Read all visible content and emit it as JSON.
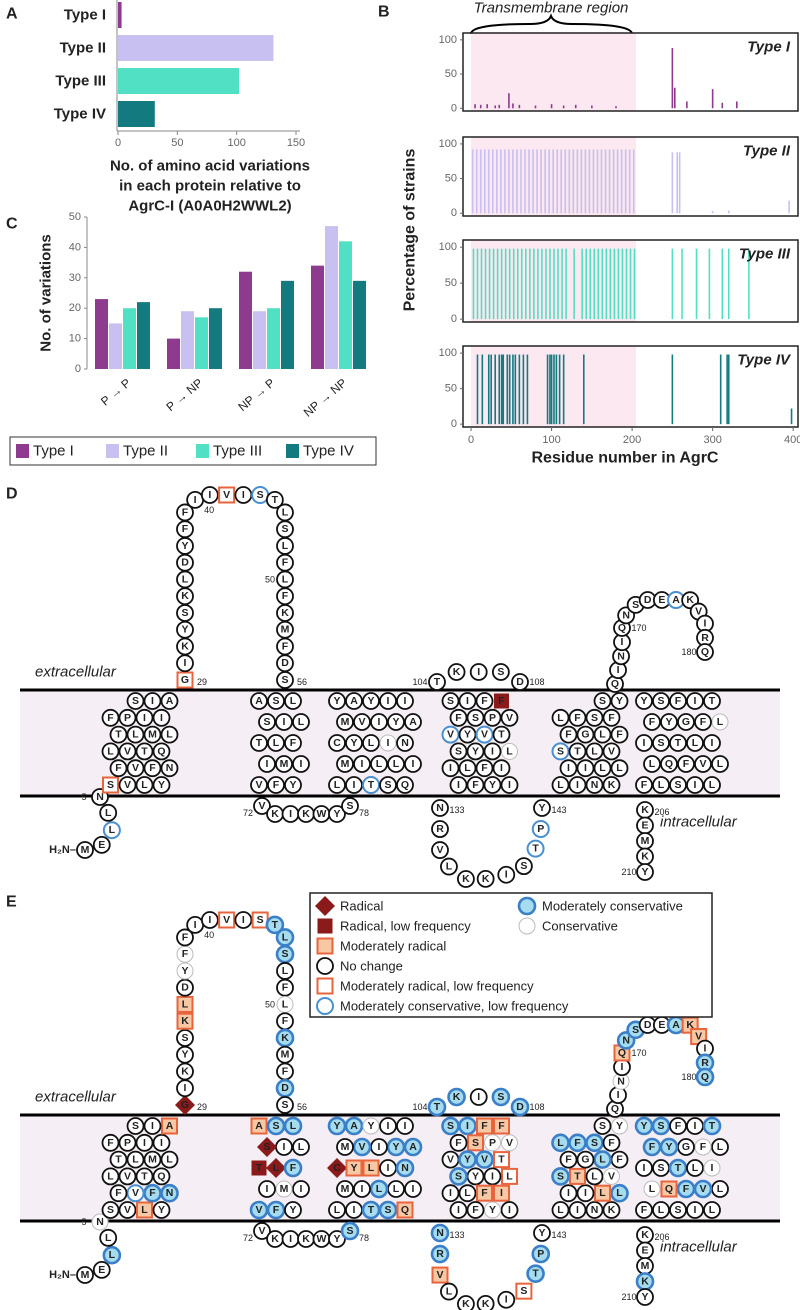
{
  "panel_labels": [
    "A",
    "B",
    "C",
    "D",
    "E"
  ],
  "chart_data": [
    {
      "type": "bar",
      "orientation": "horizontal",
      "categories": [
        "Type I",
        "Type II",
        "Type III",
        "Type IV"
      ],
      "values": [
        3,
        131,
        102,
        31
      ],
      "colors": [
        "#8e3a8e",
        "#c8c0f0",
        "#52e0c4",
        "#137a80"
      ],
      "xlim": [
        0,
        150
      ],
      "xticks": [
        0,
        50,
        100,
        150
      ],
      "xlabel": [
        "No. of amino acid variations",
        "in each protein relative to",
        "AgrC-I (A0A0H2WWL2)"
      ]
    },
    {
      "type": "bar",
      "title": "Type I",
      "annotation": "Transmembrane region",
      "ylabel": "Percentage of strains",
      "shaded_range": [
        0,
        205
      ],
      "color": "#8e3a8e",
      "xlim": [
        -10,
        406
      ],
      "ylim": [
        -4,
        110
      ],
      "yticks": [
        0,
        50,
        100
      ],
      "x": [
        5,
        12,
        20,
        30,
        35,
        47,
        52,
        60,
        80,
        100,
        115,
        130,
        150,
        180,
        250,
        253,
        268,
        300,
        312,
        330
      ],
      "values": [
        6,
        5,
        6,
        4,
        5,
        22,
        7,
        5,
        4,
        6,
        4,
        5,
        4,
        3,
        88,
        30,
        10,
        28,
        8,
        10
      ]
    },
    {
      "type": "bar",
      "title": "Type II",
      "shaded_range": [
        0,
        205
      ],
      "color": "#c8c0f0",
      "xlim": [
        -10,
        406
      ],
      "ylim": [
        -4,
        110
      ],
      "yticks": [
        0,
        50,
        100
      ],
      "x": [
        2,
        7,
        12,
        17,
        22,
        27,
        32,
        37,
        42,
        47,
        52,
        57,
        62,
        67,
        72,
        77,
        82,
        87,
        92,
        97,
        102,
        107,
        112,
        117,
        122,
        127,
        132,
        137,
        142,
        147,
        152,
        157,
        162,
        167,
        172,
        177,
        182,
        187,
        192,
        197,
        202,
        250,
        256,
        259,
        300,
        320,
        395
      ],
      "values": [
        92,
        92,
        92,
        92,
        92,
        92,
        92,
        92,
        92,
        92,
        92,
        92,
        92,
        92,
        92,
        92,
        92,
        92,
        92,
        92,
        92,
        92,
        92,
        92,
        92,
        92,
        92,
        92,
        92,
        92,
        92,
        92,
        92,
        92,
        92,
        92,
        92,
        92,
        92,
        92,
        92,
        88,
        88,
        88,
        3,
        4,
        18
      ]
    },
    {
      "type": "bar",
      "title": "Type III",
      "shaded_range": [
        0,
        205
      ],
      "color": "#52e0c4",
      "xlim": [
        -10,
        406
      ],
      "ylim": [
        -4,
        110
      ],
      "yticks": [
        0,
        50,
        100
      ],
      "x": [
        3,
        8,
        13,
        18,
        23,
        28,
        33,
        38,
        43,
        48,
        53,
        58,
        63,
        68,
        73,
        78,
        83,
        88,
        93,
        98,
        103,
        108,
        113,
        118,
        128,
        138,
        143,
        148,
        153,
        158,
        163,
        168,
        173,
        178,
        183,
        188,
        193,
        198,
        203,
        250,
        262,
        280,
        296,
        312,
        320,
        345
      ],
      "values": [
        98,
        98,
        98,
        98,
        98,
        98,
        98,
        98,
        98,
        98,
        98,
        98,
        98,
        98,
        98,
        98,
        98,
        98,
        98,
        98,
        98,
        98,
        98,
        98,
        98,
        98,
        98,
        98,
        98,
        98,
        98,
        98,
        98,
        98,
        98,
        98,
        98,
        98,
        98,
        98,
        98,
        98,
        98,
        98,
        98,
        98
      ]
    },
    {
      "type": "bar",
      "title": "Type IV",
      "shaded_range": [
        0,
        205
      ],
      "color": "#137a80",
      "xlim": [
        -10,
        406
      ],
      "ylim": [
        -4,
        110
      ],
      "yticks": [
        0,
        50,
        100
      ],
      "xticks": [
        0,
        100,
        200,
        300,
        400
      ],
      "xlabel": "Residue number in AgrC",
      "x": [
        8,
        14,
        22,
        25,
        30,
        35,
        38,
        40,
        45,
        48,
        52,
        55,
        60,
        65,
        70,
        95,
        98,
        100,
        103,
        106,
        110,
        115,
        140,
        250,
        310,
        318,
        320,
        398
      ],
      "values": [
        98,
        98,
        98,
        98,
        98,
        98,
        98,
        98,
        98,
        98,
        98,
        98,
        98,
        98,
        98,
        98,
        98,
        98,
        98,
        98,
        98,
        98,
        98,
        98,
        98,
        98,
        98,
        22
      ]
    },
    {
      "type": "bar",
      "categories": [
        "P → P",
        "P → NP",
        "NP → P",
        "NP → NP"
      ],
      "ylabel": "No. of variations",
      "ylim": [
        0,
        50
      ],
      "yticks": [
        0,
        10,
        20,
        30,
        40,
        50
      ],
      "series": [
        {
          "name": "Type I",
          "color": "#8e3a8e",
          "values": [
            23,
            10,
            32,
            34
          ]
        },
        {
          "name": "Type II",
          "color": "#c8c0f0",
          "values": [
            15,
            19,
            19,
            47
          ]
        },
        {
          "name": "Type III",
          "color": "#52e0c4",
          "values": [
            20,
            17,
            20,
            42
          ]
        },
        {
          "name": "Type IV",
          "color": "#137a80",
          "values": [
            22,
            20,
            29,
            29
          ]
        }
      ]
    }
  ],
  "sequence": [
    "M",
    "E",
    "L",
    "L",
    "N",
    "S",
    "V",
    "L",
    "Y",
    "N",
    "F",
    "V",
    "F",
    "L",
    "V",
    "T",
    "Q",
    "L",
    "M",
    "L",
    "T",
    "F",
    "P",
    "I",
    "I",
    "A",
    "I",
    "S",
    "G",
    "I",
    "K",
    "Y",
    "S",
    "K",
    "L",
    "D",
    "Y",
    "F",
    "F",
    "I",
    "I",
    "V",
    "I",
    "S",
    "T",
    "L",
    "S",
    "L",
    "F",
    "L",
    "F",
    "K",
    "M",
    "F",
    "D",
    "S",
    "A",
    "S",
    "L",
    "L",
    "I",
    "S",
    "T",
    "L",
    "F",
    "I",
    "M",
    "I",
    "V",
    "F",
    "Y",
    "V",
    "K",
    "I",
    "K",
    "W",
    "Y",
    "S",
    "L",
    "I",
    "T",
    "S",
    "Q",
    "I",
    "L",
    "L",
    "I",
    "M",
    "C",
    "Y",
    "L",
    "I",
    "N",
    "A",
    "Y",
    "I",
    "V",
    "M",
    "Y",
    "A",
    "Y",
    "I",
    "I",
    "T",
    "K",
    "I",
    "S",
    "D",
    "S",
    "I",
    "F",
    "F",
    "V",
    "P",
    "S",
    "F",
    "V",
    "Y",
    "V",
    "T",
    "L",
    "I",
    "Y",
    "S",
    "I",
    "L",
    "F",
    "I",
    "I",
    "Y",
    "F",
    "I",
    "N",
    "R",
    "V",
    "L",
    "K",
    "K",
    "I",
    "S",
    "T",
    "P",
    "Y",
    "L",
    "I",
    "N",
    "K",
    "L",
    "L",
    "I",
    "I",
    "S",
    "T",
    "L",
    "V",
    "F",
    "L",
    "G",
    "F",
    "L",
    "F",
    "S",
    "F",
    "Y",
    "S",
    "Q",
    "I",
    "N",
    "I",
    "Q",
    "N",
    "S",
    "D",
    "E",
    "A",
    "K",
    "V",
    "I",
    "R",
    "Q",
    "Y",
    "S",
    "F",
    "I",
    "T",
    "L",
    "F",
    "G",
    "Y",
    "F",
    "I",
    "S",
    "T",
    "L",
    "I",
    "L",
    "V",
    "F",
    "Q",
    "L",
    "F",
    "L",
    "S",
    "I",
    "L",
    "K",
    "E",
    "M",
    "K",
    "Y"
  ],
  "panel_d": {
    "extracellular": "extracellular",
    "intracellular": "intracellular",
    "n_terminus": "H₂N–",
    "residue_labels": [
      5,
      29,
      40,
      50,
      56,
      72,
      78,
      104,
      108,
      133,
      143,
      170,
      180,
      206,
      210
    ],
    "default_class": 3,
    "highlights": [
      [
        3,
        5
      ],
      [
        6,
        4
      ],
      [
        29,
        4
      ],
      [
        42,
        4
      ],
      [
        44,
        5
      ],
      [
        81,
        5
      ],
      [
        112,
        1
      ],
      [
        117,
        5
      ],
      [
        119,
        5
      ],
      [
        141,
        5
      ],
      [
        142,
        5
      ],
      [
        152,
        5
      ],
      [
        175,
        5
      ],
      [
        121,
        7
      ],
      [
        186,
        7
      ],
      [
        92,
        7
      ]
    ]
  },
  "panel_e": {
    "extracellular": "extracellular",
    "intracellular": "intracellular",
    "n_terminus": "H₂N–",
    "residue_labels": [
      5,
      29,
      40,
      50,
      56,
      72,
      78,
      104,
      108,
      133,
      143,
      170,
      180,
      206,
      210
    ],
    "default_class": 3,
    "legend": [
      "Radical",
      "Radical, low frequency",
      "Moderately radical",
      "No change",
      "Moderately radical, low frequency",
      "Moderately conservative, low frequency",
      "Moderately conservative",
      "Conservative"
    ],
    "highlights": [
      [
        3,
        6
      ],
      [
        8,
        2
      ],
      [
        10,
        6
      ],
      [
        11,
        6
      ],
      [
        12,
        5
      ],
      [
        26,
        2
      ],
      [
        29,
        0
      ],
      [
        34,
        2
      ],
      [
        35,
        2
      ],
      [
        42,
        4
      ],
      [
        44,
        4
      ],
      [
        45,
        6
      ],
      [
        46,
        6
      ],
      [
        47,
        6
      ],
      [
        52,
        6
      ],
      [
        55,
        6
      ],
      [
        57,
        2
      ],
      [
        58,
        6
      ],
      [
        59,
        6
      ],
      [
        62,
        0
      ],
      [
        63,
        1
      ],
      [
        64,
        0
      ],
      [
        65,
        6
      ],
      [
        69,
        6
      ],
      [
        70,
        6
      ],
      [
        78,
        6
      ],
      [
        81,
        6
      ],
      [
        82,
        6
      ],
      [
        83,
        2
      ],
      [
        86,
        6
      ],
      [
        89,
        0
      ],
      [
        90,
        2
      ],
      [
        91,
        2
      ],
      [
        93,
        6
      ],
      [
        94,
        6
      ],
      [
        95,
        6
      ],
      [
        97,
        6
      ],
      [
        99,
        6
      ],
      [
        100,
        6
      ],
      [
        104,
        6
      ],
      [
        105,
        6
      ],
      [
        107,
        6
      ],
      [
        108,
        6
      ],
      [
        109,
        6
      ],
      [
        110,
        6
      ],
      [
        111,
        2
      ],
      [
        112,
        2
      ],
      [
        115,
        2
      ],
      [
        118,
        6
      ],
      [
        119,
        6
      ],
      [
        120,
        4
      ],
      [
        121,
        4
      ],
      [
        124,
        6
      ],
      [
        127,
        2
      ],
      [
        128,
        2
      ],
      [
        133,
        6
      ],
      [
        134,
        6
      ],
      [
        135,
        2
      ],
      [
        140,
        4
      ],
      [
        141,
        6
      ],
      [
        142,
        6
      ],
      [
        148,
        6
      ],
      [
        149,
        2
      ],
      [
        152,
        6
      ],
      [
        153,
        2
      ],
      [
        157,
        6
      ],
      [
        160,
        6
      ],
      [
        161,
        6
      ],
      [
        162,
        6
      ],
      [
        170,
        2
      ],
      [
        171,
        6
      ],
      [
        172,
        6
      ],
      [
        175,
        6
      ],
      [
        176,
        2
      ],
      [
        177,
        2
      ],
      [
        179,
        6
      ],
      [
        180,
        6
      ],
      [
        181,
        6
      ],
      [
        182,
        6
      ],
      [
        185,
        6
      ],
      [
        189,
        6
      ],
      [
        190,
        6
      ],
      [
        193,
        6
      ],
      [
        197,
        6
      ],
      [
        198,
        6
      ],
      [
        199,
        2
      ],
      [
        209,
        6
      ],
      [
        5,
        7
      ],
      [
        37,
        7
      ],
      [
        38,
        7
      ],
      [
        50,
        7
      ],
      [
        67,
        7
      ],
      [
        101,
        7
      ],
      [
        113,
        7
      ],
      [
        114,
        7
      ],
      [
        130,
        7
      ],
      [
        155,
        7
      ],
      [
        164,
        7
      ],
      [
        168,
        7
      ],
      [
        187,
        7
      ],
      [
        195,
        7
      ],
      [
        200,
        7
      ]
    ]
  }
}
